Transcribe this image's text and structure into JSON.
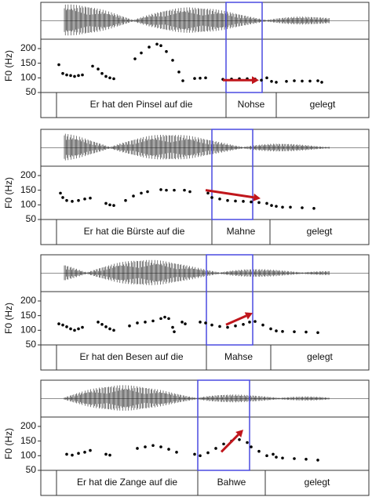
{
  "chart_data": [
    {
      "type": "scatter",
      "y_label": "F0 (Hz)",
      "color": "#000000",
      "x": [
        23,
        28,
        33,
        38,
        43,
        48,
        53,
        66,
        73,
        78,
        83,
        88,
        93,
        120,
        128,
        138,
        148,
        153,
        160,
        168,
        176,
        181,
        196,
        203,
        210,
        232,
        243,
        253,
        263,
        273,
        281,
        288,
        294,
        300,
        313,
        323,
        333,
        343,
        353,
        358
      ],
      "values": [
        145,
        115,
        110,
        108,
        105,
        108,
        110,
        140,
        130,
        115,
        105,
        100,
        97,
        165,
        185,
        205,
        215,
        210,
        190,
        160,
        120,
        90,
        98,
        99,
        100,
        95,
        96,
        97,
        97,
        96,
        92,
        100,
        88,
        85,
        88,
        90,
        89,
        89,
        90,
        85
      ],
      "xlim": [
        0,
        418
      ],
      "ylim": [
        50,
        232
      ],
      "yticks": [
        50,
        100,
        150,
        200
      ],
      "intervals": {
        "bounds": [
          20,
          236,
          300
        ],
        "labels": [
          "Er hat den Pinsel auf die",
          "Nohse",
          "gelegt"
        ]
      },
      "highlight": {
        "x": [
          236,
          282
        ],
        "color": "#4a4ae0"
      },
      "arrow": {
        "x": [
          232,
          278
        ],
        "y": [
          92,
          92
        ],
        "color": "#c0161c"
      }
    },
    {
      "type": "scatter",
      "y_label": "F0 (Hz)",
      "color": "#000000",
      "x": [
        25,
        28,
        33,
        40,
        48,
        56,
        63,
        83,
        88,
        93,
        108,
        118,
        128,
        136,
        153,
        160,
        170,
        183,
        190,
        213,
        218,
        228,
        238,
        248,
        258,
        268,
        278,
        288,
        294,
        300,
        308,
        318,
        333,
        348
      ],
      "values": [
        140,
        125,
        115,
        112,
        115,
        120,
        123,
        105,
        100,
        98,
        115,
        130,
        140,
        145,
        152,
        150,
        150,
        150,
        145,
        140,
        125,
        120,
        115,
        113,
        112,
        110,
        108,
        105,
        98,
        95,
        92,
        92,
        90,
        88
      ],
      "xlim": [
        0,
        418
      ],
      "ylim": [
        50,
        232
      ],
      "yticks": [
        50,
        100,
        150,
        200
      ],
      "intervals": {
        "bounds": [
          20,
          218,
          292
        ],
        "labels": [
          "Er hat die Bürste auf die",
          "Mahne",
          "gelegt"
        ]
      },
      "highlight": {
        "x": [
          218,
          270
        ],
        "color": "#4a4ae0"
      },
      "arrow": {
        "x": [
          210,
          280
        ],
        "y": [
          150,
          122
        ],
        "color": "#c0161c"
      }
    },
    {
      "type": "scatter",
      "y_label": "F0 (Hz)",
      "color": "#000000",
      "x": [
        23,
        28,
        33,
        38,
        43,
        48,
        53,
        73,
        78,
        83,
        88,
        93,
        113,
        123,
        133,
        143,
        153,
        158,
        163,
        168,
        170,
        180,
        184,
        203,
        210,
        218,
        228,
        238,
        248,
        258,
        266,
        273,
        283,
        293,
        300,
        308,
        323,
        338,
        353
      ],
      "values": [
        122,
        118,
        112,
        105,
        100,
        105,
        110,
        128,
        120,
        112,
        105,
        100,
        115,
        125,
        128,
        132,
        140,
        145,
        140,
        110,
        95,
        128,
        122,
        128,
        125,
        118,
        113,
        110,
        115,
        120,
        128,
        130,
        118,
        105,
        98,
        96,
        95,
        94,
        92
      ],
      "xlim": [
        0,
        418
      ],
      "ylim": [
        50,
        232
      ],
      "yticks": [
        50,
        100,
        150,
        200
      ],
      "intervals": {
        "bounds": [
          20,
          211,
          293
        ],
        "labels": [
          "Er hat den Besen auf die",
          "Mahse",
          "gelegt"
        ]
      },
      "highlight": {
        "x": [
          211,
          270
        ],
        "color": "#4a4ae0"
      },
      "arrow": {
        "x": [
          236,
          270
        ],
        "y": [
          119,
          159
        ],
        "color": "#c0161c"
      }
    },
    {
      "type": "scatter",
      "y_label": "F0 (Hz)",
      "color": "#000000",
      "x": [
        33,
        40,
        48,
        56,
        63,
        83,
        88,
        123,
        133,
        143,
        153,
        163,
        173,
        196,
        203,
        213,
        223,
        233,
        243,
        253,
        263,
        268,
        278,
        288,
        296,
        300,
        308,
        323,
        338,
        353
      ],
      "values": [
        105,
        102,
        108,
        112,
        118,
        105,
        102,
        125,
        130,
        135,
        130,
        122,
        112,
        105,
        100,
        110,
        125,
        140,
        150,
        155,
        145,
        130,
        115,
        100,
        105,
        95,
        92,
        90,
        88,
        85
      ],
      "xlim": [
        0,
        418
      ],
      "ylim": [
        50,
        232
      ],
      "yticks": [
        50,
        100,
        150,
        200
      ],
      "intervals": {
        "bounds": [
          20,
          200,
          286
        ],
        "labels": [
          "Er hat die Zange auf die",
          "Bahwe",
          "gelegt"
        ]
      },
      "highlight": {
        "x": [
          200,
          266
        ],
        "color": "#4a4ae0"
      },
      "arrow": {
        "x": [
          230,
          258
        ],
        "y": [
          113,
          189
        ],
        "color": "#c0161c"
      }
    }
  ]
}
